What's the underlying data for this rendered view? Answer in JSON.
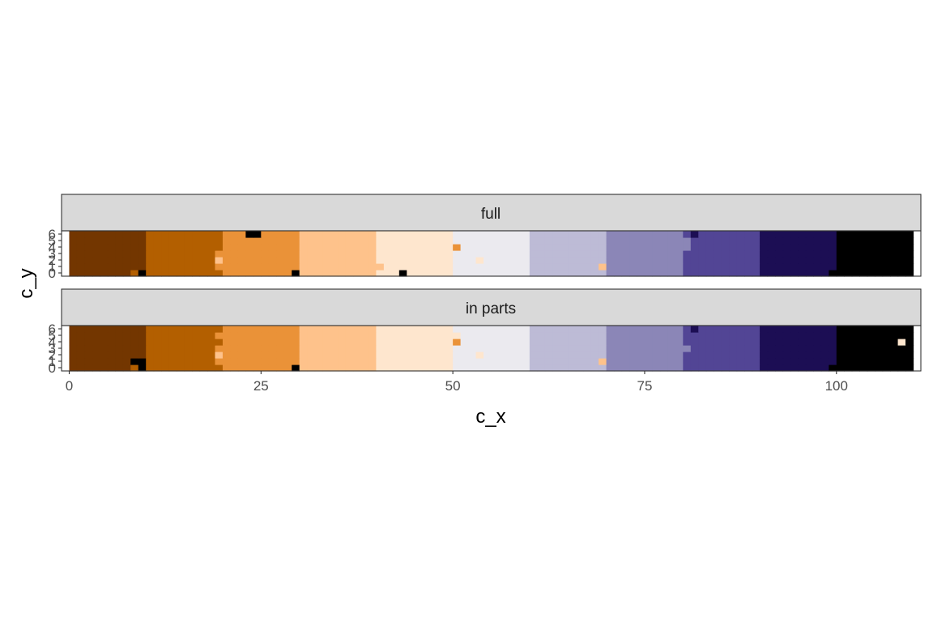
{
  "chart_data": {
    "type": "heatmap",
    "title": "",
    "xlabel": "c_x",
    "ylabel": "c_y",
    "xlim": [
      -1,
      111
    ],
    "ylim": [
      -0.5,
      6.5
    ],
    "x_ticks": [
      0,
      25,
      50,
      75,
      100
    ],
    "y_ticks": [
      0,
      1,
      2,
      3,
      4,
      5,
      6
    ],
    "grid": false,
    "x_extent": [
      0,
      110
    ],
    "palette": [
      "#7f3b08",
      "#b35806",
      "#e08214",
      "#fdb863",
      "#fee0b6",
      "#f7f7f7",
      "#d8daeb",
      "#b2abd2",
      "#8073ac",
      "#542788",
      "#2d004b"
    ],
    "cell_colors": [
      "#733600",
      "#b35f00",
      "#ea9238",
      "#fec28b",
      "#fee6ce",
      "#ebeaef",
      "#bdbbd6",
      "#8b86b7",
      "#524595",
      "#1c0e54",
      "#000000"
    ],
    "color_bands": [
      {
        "x_start": 0,
        "x_end": 10,
        "color_index": 0
      },
      {
        "x_start": 10,
        "x_end": 20,
        "color_index": 1
      },
      {
        "x_start": 20,
        "x_end": 30,
        "color_index": 2
      },
      {
        "x_start": 30,
        "x_end": 40,
        "color_index": 3
      },
      {
        "x_start": 40,
        "x_end": 50,
        "color_index": 4
      },
      {
        "x_start": 50,
        "x_end": 60,
        "color_index": 5
      },
      {
        "x_start": 60,
        "x_end": 70,
        "color_index": 6
      },
      {
        "x_start": 70,
        "x_end": 80,
        "color_index": 7
      },
      {
        "x_start": 80,
        "x_end": 90,
        "color_index": 8
      },
      {
        "x_start": 90,
        "x_end": 100,
        "color_index": 9
      },
      {
        "x_start": 100,
        "x_end": 110,
        "color_index": 10
      }
    ],
    "panels": [
      {
        "label": "full",
        "exceptions": [
          {
            "x": 8,
            "y": 0,
            "color_index": 1
          },
          {
            "x": 9,
            "y": 0,
            "color_index": 10
          },
          {
            "x": 9,
            "y": 1,
            "color_index": 0
          },
          {
            "x": 19,
            "y": 1,
            "color_index": 2
          },
          {
            "x": 19,
            "y": 2,
            "color_index": 3
          },
          {
            "x": 19,
            "y": 3,
            "color_index": 2
          },
          {
            "x": 18,
            "y": 4,
            "color_index": 1
          },
          {
            "x": 23,
            "y": 6,
            "color_index": 10
          },
          {
            "x": 24,
            "y": 6,
            "color_index": 10
          },
          {
            "x": 29,
            "y": 0,
            "color_index": 10
          },
          {
            "x": 39,
            "y": 0,
            "color_index": 3
          },
          {
            "x": 39,
            "y": 1,
            "color_index": 3
          },
          {
            "x": 38,
            "y": 6,
            "color_index": 3
          },
          {
            "x": 40,
            "y": 1,
            "color_index": 3
          },
          {
            "x": 43,
            "y": 0,
            "color_index": 10
          },
          {
            "x": 49,
            "y": 1,
            "color_index": 4
          },
          {
            "x": 49,
            "y": 3,
            "color_index": 4
          },
          {
            "x": 50,
            "y": 4,
            "color_index": 2
          },
          {
            "x": 53,
            "y": 2,
            "color_index": 4
          },
          {
            "x": 69,
            "y": 0,
            "color_index": 6
          },
          {
            "x": 69,
            "y": 1,
            "color_index": 3
          },
          {
            "x": 80,
            "y": 4,
            "color_index": 7
          },
          {
            "x": 80,
            "y": 5,
            "color_index": 7
          },
          {
            "x": 81,
            "y": 6,
            "color_index": 9
          },
          {
            "x": 99,
            "y": 0,
            "color_index": 10
          }
        ]
      },
      {
        "label": "in parts",
        "exceptions": [
          {
            "x": 8,
            "y": 0,
            "color_index": 1
          },
          {
            "x": 9,
            "y": 0,
            "color_index": 10
          },
          {
            "x": 8,
            "y": 1,
            "color_index": 10
          },
          {
            "x": 9,
            "y": 1,
            "color_index": 10
          },
          {
            "x": 19,
            "y": 1,
            "color_index": 2
          },
          {
            "x": 19,
            "y": 2,
            "color_index": 3
          },
          {
            "x": 19,
            "y": 3,
            "color_index": 2
          },
          {
            "x": 19,
            "y": 5,
            "color_index": 2
          },
          {
            "x": 19,
            "y": 6,
            "color_index": 1
          },
          {
            "x": 29,
            "y": 0,
            "color_index": 10
          },
          {
            "x": 39,
            "y": 1,
            "color_index": 3
          },
          {
            "x": 39,
            "y": 2,
            "color_index": 3
          },
          {
            "x": 38,
            "y": 6,
            "color_index": 3
          },
          {
            "x": 50,
            "y": 4,
            "color_index": 2
          },
          {
            "x": 50,
            "y": 5,
            "color_index": 4
          },
          {
            "x": 53,
            "y": 2,
            "color_index": 4
          },
          {
            "x": 69,
            "y": 0,
            "color_index": 6
          },
          {
            "x": 69,
            "y": 1,
            "color_index": 3
          },
          {
            "x": 80,
            "y": 3,
            "color_index": 7
          },
          {
            "x": 80,
            "y": 4,
            "color_index": 8
          },
          {
            "x": 81,
            "y": 6,
            "color_index": 9
          },
          {
            "x": 99,
            "y": 0,
            "color_index": 10
          },
          {
            "x": 108,
            "y": 4,
            "color_index": 4
          }
        ]
      }
    ]
  }
}
